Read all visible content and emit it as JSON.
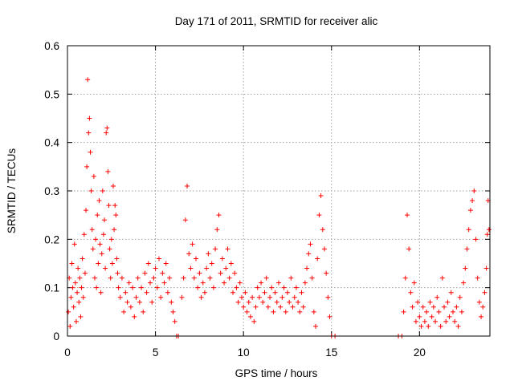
{
  "chart_data": {
    "type": "scatter",
    "title": "Day 171 of 2011, SRMTID for receiver alic",
    "xlabel": "GPS time / hours",
    "ylabel": "SRMTID / TECUs",
    "xlim": [
      0,
      24
    ],
    "ylim": [
      0,
      0.6
    ],
    "x_ticks": [
      0,
      5,
      10,
      15,
      20
    ],
    "x_tick_labels": [
      "0",
      "5",
      "10",
      "15",
      "20"
    ],
    "y_ticks": [
      0,
      0.1,
      0.2,
      0.3,
      0.4,
      0.5,
      0.6
    ],
    "y_tick_labels": [
      "0",
      "0.1",
      "0.2",
      "0.3",
      "0.4",
      "0.5",
      "0.6"
    ],
    "grid": true,
    "marker": "+",
    "color": "#ff0000",
    "series": [
      {
        "name": "SRMTID",
        "points": [
          [
            0.05,
            0.05
          ],
          [
            0.1,
            0.12
          ],
          [
            0.15,
            0.02
          ],
          [
            0.2,
            0.08
          ],
          [
            0.25,
            0.15
          ],
          [
            0.3,
            0.1
          ],
          [
            0.35,
            0.06
          ],
          [
            0.4,
            0.19
          ],
          [
            0.45,
            0.11
          ],
          [
            0.5,
            0.03
          ],
          [
            0.55,
            0.09
          ],
          [
            0.6,
            0.14
          ],
          [
            0.65,
            0.07
          ],
          [
            0.7,
            0.12
          ],
          [
            0.75,
            0.04
          ],
          [
            0.8,
            0.1
          ],
          [
            0.85,
            0.16
          ],
          [
            0.9,
            0.08
          ],
          [
            0.95,
            0.21
          ],
          [
            1.0,
            0.13
          ],
          [
            1.05,
            0.26
          ],
          [
            1.1,
            0.35
          ],
          [
            1.15,
            0.53
          ],
          [
            1.2,
            0.42
          ],
          [
            1.25,
            0.45
          ],
          [
            1.3,
            0.38
          ],
          [
            1.35,
            0.3
          ],
          [
            1.4,
            0.22
          ],
          [
            1.45,
            0.18
          ],
          [
            1.5,
            0.33
          ],
          [
            1.55,
            0.12
          ],
          [
            1.6,
            0.2
          ],
          [
            1.65,
            0.1
          ],
          [
            1.7,
            0.25
          ],
          [
            1.75,
            0.15
          ],
          [
            1.8,
            0.28
          ],
          [
            1.85,
            0.19
          ],
          [
            1.9,
            0.09
          ],
          [
            1.95,
            0.17
          ],
          [
            2.0,
            0.3
          ],
          [
            2.05,
            0.21
          ],
          [
            2.1,
            0.24
          ],
          [
            2.15,
            0.14
          ],
          [
            2.2,
            0.42
          ],
          [
            2.25,
            0.43
          ],
          [
            2.3,
            0.34
          ],
          [
            2.35,
            0.27
          ],
          [
            2.4,
            0.18
          ],
          [
            2.45,
            0.12
          ],
          [
            2.5,
            0.2
          ],
          [
            2.55,
            0.15
          ],
          [
            2.6,
            0.31
          ],
          [
            2.65,
            0.22
          ],
          [
            2.7,
            0.27
          ],
          [
            2.75,
            0.25
          ],
          [
            2.8,
            0.16
          ],
          [
            2.85,
            0.13
          ],
          [
            2.9,
            0.1
          ],
          [
            3.0,
            0.08
          ],
          [
            3.1,
            0.12
          ],
          [
            3.2,
            0.05
          ],
          [
            3.3,
            0.09
          ],
          [
            3.4,
            0.07
          ],
          [
            3.5,
            0.11
          ],
          [
            3.6,
            0.06
          ],
          [
            3.7,
            0.1
          ],
          [
            3.8,
            0.04
          ],
          [
            3.9,
            0.08
          ],
          [
            4.0,
            0.12
          ],
          [
            4.1,
            0.07
          ],
          [
            4.2,
            0.1
          ],
          [
            4.3,
            0.05
          ],
          [
            4.4,
            0.13
          ],
          [
            4.5,
            0.09
          ],
          [
            4.6,
            0.15
          ],
          [
            4.7,
            0.11
          ],
          [
            4.8,
            0.07
          ],
          [
            4.9,
            0.12
          ],
          [
            5.0,
            0.14
          ],
          [
            5.1,
            0.1
          ],
          [
            5.2,
            0.16
          ],
          [
            5.3,
            0.08
          ],
          [
            5.4,
            0.13
          ],
          [
            5.5,
            0.11
          ],
          [
            5.6,
            0.15
          ],
          [
            5.7,
            0.09
          ],
          [
            5.8,
            0.12
          ],
          [
            5.9,
            0.07
          ],
          [
            6.0,
            0.05
          ],
          [
            6.1,
            0.03
          ],
          [
            6.2,
            0.0
          ],
          [
            6.3,
            0.0
          ],
          [
            6.5,
            0.08
          ],
          [
            6.6,
            0.12
          ],
          [
            6.7,
            0.24
          ],
          [
            6.8,
            0.31
          ],
          [
            6.9,
            0.17
          ],
          [
            7.0,
            0.14
          ],
          [
            7.1,
            0.19
          ],
          [
            7.2,
            0.12
          ],
          [
            7.3,
            0.16
          ],
          [
            7.4,
            0.1
          ],
          [
            7.5,
            0.13
          ],
          [
            7.6,
            0.08
          ],
          [
            7.7,
            0.11
          ],
          [
            7.8,
            0.09
          ],
          [
            7.9,
            0.14
          ],
          [
            8.0,
            0.17
          ],
          [
            8.1,
            0.12
          ],
          [
            8.2,
            0.15
          ],
          [
            8.3,
            0.1
          ],
          [
            8.4,
            0.18
          ],
          [
            8.5,
            0.22
          ],
          [
            8.6,
            0.25
          ],
          [
            8.7,
            0.13
          ],
          [
            8.8,
            0.16
          ],
          [
            8.9,
            0.11
          ],
          [
            9.0,
            0.14
          ],
          [
            9.1,
            0.18
          ],
          [
            9.2,
            0.12
          ],
          [
            9.3,
            0.15
          ],
          [
            9.4,
            0.09
          ],
          [
            9.5,
            0.13
          ],
          [
            9.6,
            0.1
          ],
          [
            9.7,
            0.07
          ],
          [
            9.8,
            0.11
          ],
          [
            9.9,
            0.08
          ],
          [
            10.0,
            0.06
          ],
          [
            10.1,
            0.09
          ],
          [
            10.2,
            0.05
          ],
          [
            10.3,
            0.07
          ],
          [
            10.4,
            0.04
          ],
          [
            10.5,
            0.08
          ],
          [
            10.6,
            0.03
          ],
          [
            10.7,
            0.06
          ],
          [
            10.8,
            0.1
          ],
          [
            10.9,
            0.08
          ],
          [
            11.0,
            0.11
          ],
          [
            11.1,
            0.07
          ],
          [
            11.2,
            0.09
          ],
          [
            11.3,
            0.12
          ],
          [
            11.4,
            0.06
          ],
          [
            11.5,
            0.08
          ],
          [
            11.6,
            0.1
          ],
          [
            11.7,
            0.05
          ],
          [
            11.8,
            0.09
          ],
          [
            11.9,
            0.07
          ],
          [
            12.0,
            0.11
          ],
          [
            12.1,
            0.06
          ],
          [
            12.2,
            0.08
          ],
          [
            12.3,
            0.1
          ],
          [
            12.4,
            0.05
          ],
          [
            12.5,
            0.09
          ],
          [
            12.6,
            0.07
          ],
          [
            12.7,
            0.12
          ],
          [
            12.8,
            0.06
          ],
          [
            12.9,
            0.08
          ],
          [
            13.0,
            0.1
          ],
          [
            13.1,
            0.07
          ],
          [
            13.2,
            0.05
          ],
          [
            13.3,
            0.09
          ],
          [
            13.4,
            0.06
          ],
          [
            13.5,
            0.11
          ],
          [
            13.6,
            0.14
          ],
          [
            13.7,
            0.17
          ],
          [
            13.8,
            0.19
          ],
          [
            13.9,
            0.12
          ],
          [
            14.0,
            0.05
          ],
          [
            14.1,
            0.02
          ],
          [
            14.2,
            0.16
          ],
          [
            14.3,
            0.25
          ],
          [
            14.4,
            0.29
          ],
          [
            14.5,
            0.22
          ],
          [
            14.6,
            0.18
          ],
          [
            14.7,
            0.13
          ],
          [
            14.8,
            0.08
          ],
          [
            14.9,
            0.04
          ],
          [
            15.0,
            0.0
          ],
          [
            15.2,
            0.0
          ],
          [
            18.8,
            0.0
          ],
          [
            19.0,
            0.0
          ],
          [
            19.1,
            0.05
          ],
          [
            19.2,
            0.12
          ],
          [
            19.3,
            0.25
          ],
          [
            19.4,
            0.18
          ],
          [
            19.5,
            0.09
          ],
          [
            19.6,
            0.06
          ],
          [
            19.7,
            0.11
          ],
          [
            19.8,
            0.03
          ],
          [
            19.9,
            0.07
          ],
          [
            20.0,
            0.04
          ],
          [
            20.1,
            0.02
          ],
          [
            20.2,
            0.06
          ],
          [
            20.3,
            0.03
          ],
          [
            20.4,
            0.05
          ],
          [
            20.5,
            0.02
          ],
          [
            20.6,
            0.07
          ],
          [
            20.7,
            0.04
          ],
          [
            20.8,
            0.06
          ],
          [
            20.9,
            0.03
          ],
          [
            21.0,
            0.08
          ],
          [
            21.1,
            0.05
          ],
          [
            21.2,
            0.02
          ],
          [
            21.3,
            0.12
          ],
          [
            21.4,
            0.06
          ],
          [
            21.5,
            0.03
          ],
          [
            21.6,
            0.07
          ],
          [
            21.7,
            0.04
          ],
          [
            21.8,
            0.09
          ],
          [
            21.9,
            0.05
          ],
          [
            22.0,
            0.03
          ],
          [
            22.1,
            0.06
          ],
          [
            22.2,
            0.02
          ],
          [
            22.3,
            0.08
          ],
          [
            22.4,
            0.05
          ],
          [
            22.5,
            0.11
          ],
          [
            22.6,
            0.14
          ],
          [
            22.7,
            0.18
          ],
          [
            22.8,
            0.22
          ],
          [
            22.9,
            0.26
          ],
          [
            23.0,
            0.28
          ],
          [
            23.1,
            0.3
          ],
          [
            23.2,
            0.2
          ],
          [
            23.3,
            0.12
          ],
          [
            23.4,
            0.07
          ],
          [
            23.5,
            0.04
          ],
          [
            23.6,
            0.06
          ],
          [
            23.7,
            0.09
          ],
          [
            23.8,
            0.14
          ],
          [
            23.85,
            0.21
          ],
          [
            23.9,
            0.28
          ],
          [
            23.95,
            0.22
          ]
        ]
      }
    ]
  }
}
